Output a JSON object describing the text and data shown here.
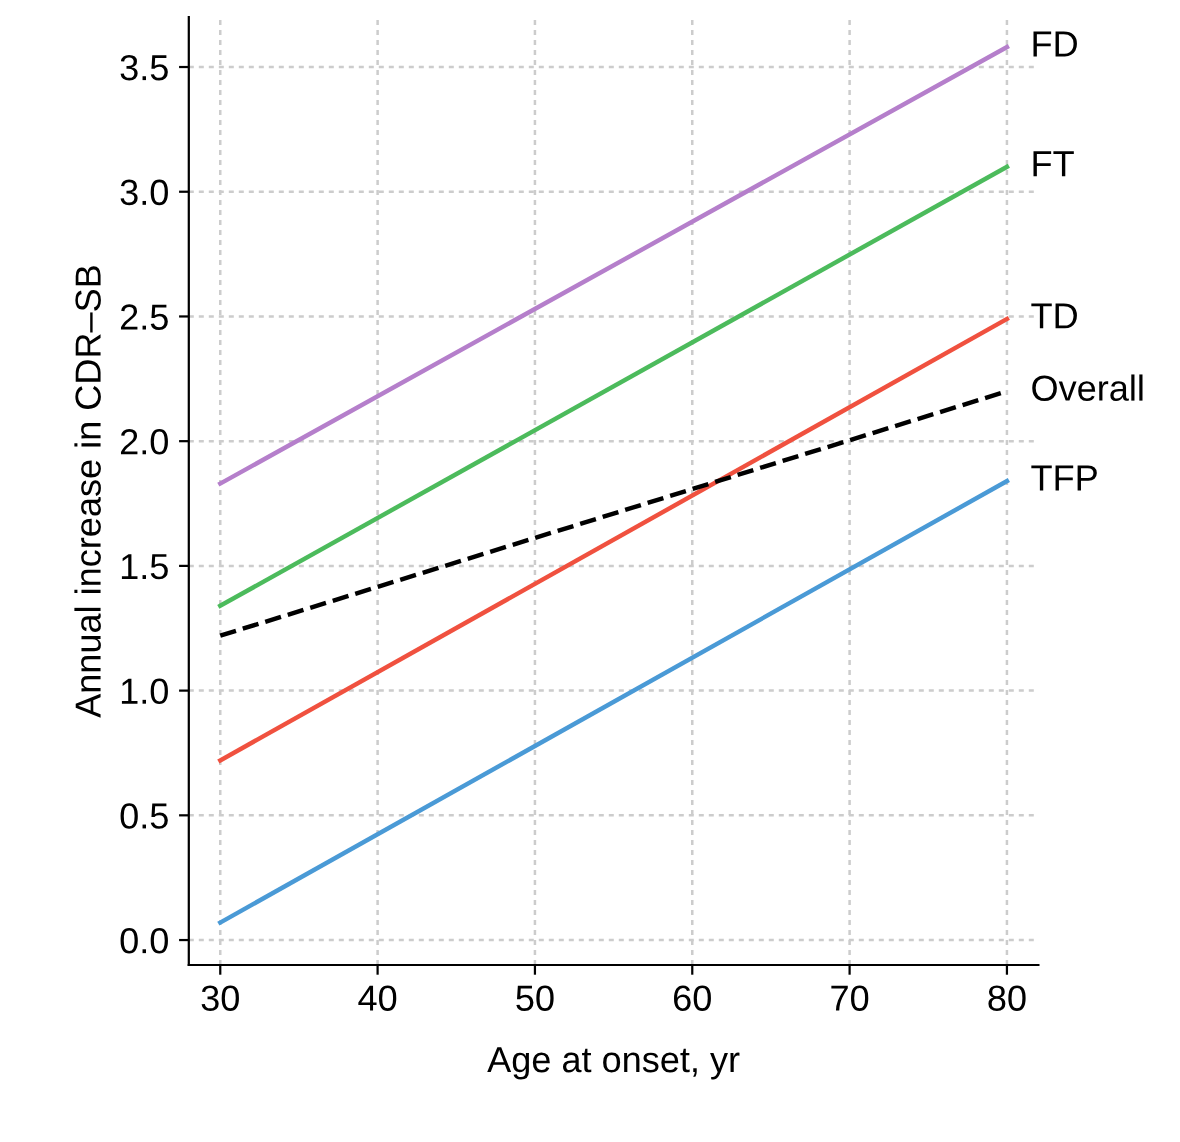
{
  "chart_data": {
    "type": "line",
    "xlabel": "Age at onset, yr",
    "ylabel": "Annual increase in CDR–SB",
    "x": [
      30,
      80
    ],
    "series": [
      {
        "name": "FD",
        "color": "#b57fcb",
        "values": [
          1.83,
          3.58
        ],
        "line_style": "solid"
      },
      {
        "name": "FT",
        "color": "#4cbb5c",
        "values": [
          1.34,
          3.1
        ],
        "line_style": "solid"
      },
      {
        "name": "TD",
        "color": "#f0513f",
        "values": [
          0.72,
          2.49
        ],
        "line_style": "solid"
      },
      {
        "name": "Overall",
        "color": "#000000",
        "values": [
          1.22,
          2.2
        ],
        "line_style": "dashed"
      },
      {
        "name": "TFP",
        "color": "#4a9ad6",
        "values": [
          0.07,
          1.84
        ],
        "line_style": "solid"
      }
    ],
    "xlim": [
      28,
      82
    ],
    "ylim": [
      -0.1,
      3.7
    ],
    "xticks": [
      30,
      40,
      50,
      60,
      70,
      80
    ],
    "yticks": [
      {
        "value": 0,
        "label": "0.0"
      },
      {
        "value": 0.5,
        "label": "0.5"
      },
      {
        "value": 1,
        "label": "1.0"
      },
      {
        "value": 1.5,
        "label": "1.5"
      },
      {
        "value": 2,
        "label": "2.0"
      },
      {
        "value": 2.5,
        "label": "2.5"
      },
      {
        "value": 3,
        "label": "3.0"
      },
      {
        "value": 3.5,
        "label": "3.5"
      }
    ],
    "grid": true,
    "marker": "none"
  }
}
